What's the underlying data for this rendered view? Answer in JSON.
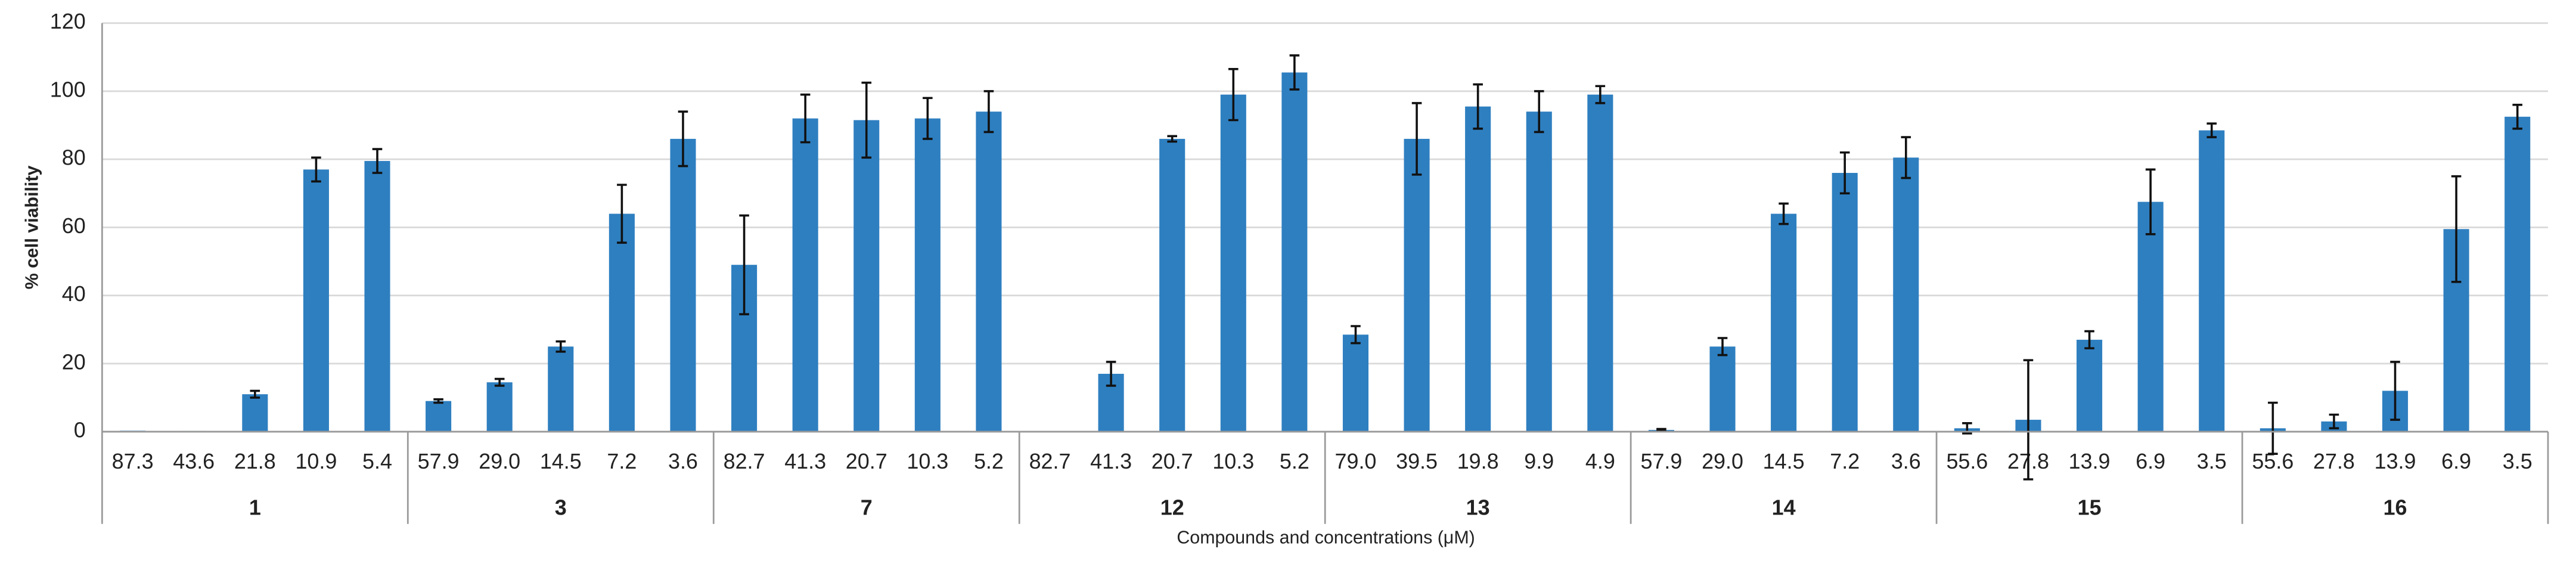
{
  "chart_data": {
    "type": "bar",
    "y_label": "% cell viability",
    "x_label": "Compounds and concentrations (μM)",
    "color": "#2e7fc0",
    "ylim": [
      0,
      120
    ],
    "yticks": [
      0,
      20,
      40,
      60,
      80,
      100,
      120
    ],
    "grid": true,
    "groups": [
      {
        "name": "1",
        "categories": [
          "87.3",
          "43.6",
          "21.8",
          "10.9",
          "5.4"
        ],
        "values": [
          0.3,
          0.2,
          11,
          77,
          79.5
        ],
        "errors": [
          0,
          0,
          1,
          3.5,
          3.5
        ]
      },
      {
        "name": "3",
        "categories": [
          "57.9",
          "29.0",
          "14.5",
          "7.2",
          "3.6"
        ],
        "values": [
          9,
          14.5,
          25,
          64,
          86
        ],
        "errors": [
          0.5,
          1,
          1.5,
          8.5,
          8
        ]
      },
      {
        "name": "7",
        "categories": [
          "82.7",
          "41.3",
          "20.7",
          "10.3",
          "5.2"
        ],
        "values": [
          49,
          92,
          91.5,
          92,
          94
        ],
        "errors": [
          14.5,
          7,
          11,
          6,
          6
        ]
      },
      {
        "name": "12",
        "categories": [
          "82.7",
          "41.3",
          "20.7",
          "10.3",
          "5.2"
        ],
        "values": [
          0,
          17,
          86,
          99,
          105.5
        ],
        "errors": [
          0,
          3.5,
          0.8,
          7.5,
          5
        ]
      },
      {
        "name": "13",
        "categories": [
          "79.0",
          "39.5",
          "19.8",
          "9.9",
          "4.9"
        ],
        "values": [
          28.5,
          86,
          95.5,
          94,
          99
        ],
        "errors": [
          2.5,
          10.5,
          6.5,
          6,
          2.5
        ]
      },
      {
        "name": "14",
        "categories": [
          "57.9",
          "29.0",
          "14.5",
          "7.2",
          "3.6"
        ],
        "values": [
          0.5,
          25,
          64,
          76,
          80.5
        ],
        "errors": [
          0.3,
          2.5,
          3,
          6,
          6
        ]
      },
      {
        "name": "15",
        "categories": [
          "55.6",
          "27.8",
          "13.9",
          "6.9",
          "3.5"
        ],
        "values": [
          1,
          3.5,
          27,
          67.5,
          88.5
        ],
        "errors": [
          1.5,
          17.5,
          2.5,
          9.5,
          2
        ]
      },
      {
        "name": "16",
        "categories": [
          "55.6",
          "27.8",
          "13.9",
          "6.9",
          "3.5"
        ],
        "values": [
          1,
          3,
          12,
          59.5,
          92.5
        ],
        "errors": [
          7.5,
          2,
          8.5,
          15.5,
          3.5
        ]
      }
    ]
  }
}
